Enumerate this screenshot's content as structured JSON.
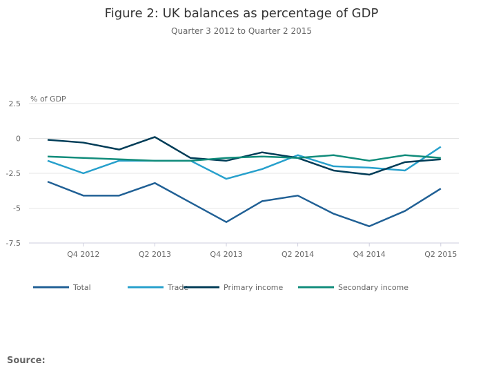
{
  "chart_data": {
    "type": "line",
    "title": "Figure 2: UK balances as percentage of GDP",
    "subtitle": "Quarter 3 2012 to Quarter 2 2015",
    "ylabel": "% of GDP",
    "xlabel": "",
    "ylim": [
      -7.5,
      2.5
    ],
    "yticks": [
      2.5,
      0,
      -2.5,
      -5,
      -7.5
    ],
    "ytick_labels": [
      "2.5",
      "0",
      "-2.5",
      "-5",
      "-7.5"
    ],
    "x": [
      "Q3 2012",
      "Q4 2012",
      "Q1 2013",
      "Q2 2013",
      "Q3 2013",
      "Q4 2013",
      "Q1 2014",
      "Q2 2014",
      "Q3 2014",
      "Q4 2014",
      "Q1 2015",
      "Q2 2015"
    ],
    "xtick_labels": [
      "Q4 2012",
      "Q2 2013",
      "Q4 2013",
      "Q2 2014",
      "Q4 2014",
      "Q2 2015"
    ],
    "grid": true,
    "legend_position": "bottom",
    "series": [
      {
        "name": "Total",
        "color": "#206095",
        "values": [
          -3.1,
          -4.1,
          -4.1,
          -3.2,
          -4.6,
          -6.0,
          -4.5,
          -4.1,
          -5.4,
          -6.3,
          -5.2,
          -3.6
        ]
      },
      {
        "name": "Trade",
        "color": "#27a0cc",
        "values": [
          -1.6,
          -2.5,
          -1.6,
          -1.6,
          -1.6,
          -2.9,
          -2.2,
          -1.2,
          -2.0,
          -2.1,
          -2.3,
          -0.6
        ]
      },
      {
        "name": "Primary income",
        "color": "#003c57",
        "values": [
          -0.1,
          -0.3,
          -0.8,
          0.1,
          -1.4,
          -1.6,
          -1.0,
          -1.4,
          -2.3,
          -2.6,
          -1.7,
          -1.5
        ]
      },
      {
        "name": "Secondary income",
        "color": "#118c7b",
        "values": [
          -1.3,
          -1.4,
          -1.5,
          -1.6,
          -1.6,
          -1.4,
          -1.3,
          -1.4,
          -1.2,
          -1.6,
          -1.2,
          -1.4
        ]
      }
    ]
  },
  "footer": {
    "source_label": "Source:"
  }
}
